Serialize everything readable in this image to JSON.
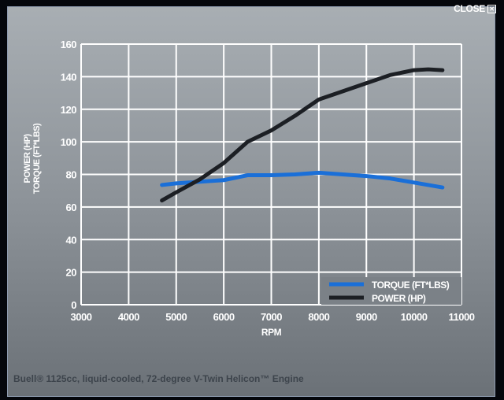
{
  "close_label": "CLOSE",
  "caption": "Buell® 1125cc, liquid-cooled, 72-degree V-Twin Helicon™ Engine",
  "chart_data": {
    "type": "line",
    "xlabel": "RPM",
    "ylabel": [
      "POWER (HP)",
      "TORQUE (FT*LBS)"
    ],
    "xlim": [
      3000,
      11000
    ],
    "ylim": [
      0,
      160
    ],
    "xticks": [
      3000,
      4000,
      5000,
      6000,
      7000,
      8000,
      9000,
      10000,
      11000
    ],
    "yticks": [
      0,
      20,
      40,
      60,
      80,
      100,
      120,
      140,
      160
    ],
    "grid": true,
    "legend_position": "bottom-right",
    "series": [
      {
        "name": "TORQUE (FT*LBS)",
        "color": "#1a6fd8",
        "x": [
          4700,
          5000,
          5500,
          6000,
          6500,
          7000,
          7500,
          8000,
          8500,
          9000,
          9500,
          10000,
          10600
        ],
        "y": [
          73.5,
          74.5,
          75.5,
          76.5,
          79.5,
          79.5,
          80,
          81,
          80,
          79,
          77.5,
          75,
          72
        ]
      },
      {
        "name": "POWER (HP)",
        "color": "#1c1f24",
        "x": [
          4700,
          5000,
          5500,
          6000,
          6500,
          7000,
          7500,
          8000,
          8500,
          9000,
          9500,
          10000,
          10300,
          10600
        ],
        "y": [
          64,
          69,
          77,
          87,
          100,
          107,
          116,
          126,
          131,
          136,
          141,
          144,
          144.5,
          144
        ]
      }
    ]
  }
}
